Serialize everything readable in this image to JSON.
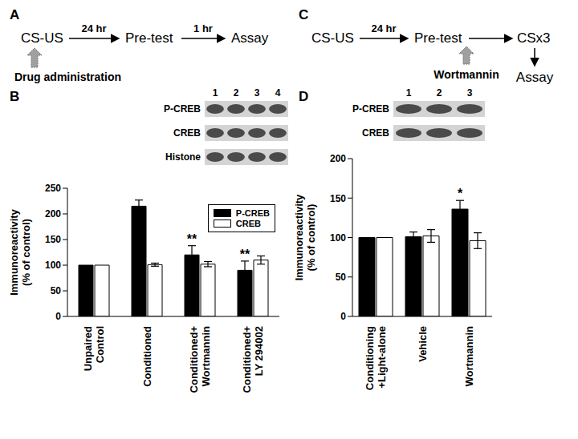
{
  "panel_labels": [
    "A",
    "B",
    "C",
    "D"
  ],
  "diagrams": [
    {
      "steps": [
        "CS-US",
        "Pre-test",
        "Assay"
      ],
      "intervals": [
        "24 hr",
        "1 hr"
      ],
      "intervention": "Drug administration"
    },
    {
      "steps": [
        "CS-US",
        "Pre-test",
        "CSx3",
        "Assay"
      ],
      "intervals": [
        "24 hr"
      ],
      "intervention": "Wortmannin"
    }
  ],
  "blots": [
    {
      "lanes": [
        "1",
        "2",
        "3",
        "4"
      ],
      "rows": [
        "P-CREB",
        "CREB",
        "Histone"
      ]
    },
    {
      "lanes": [
        "1",
        "2",
        "3"
      ],
      "rows": [
        "P-CREB",
        "CREB"
      ]
    }
  ],
  "chart_data": [
    {
      "type": "bar",
      "y_label": "Immunoreactivity\n(% of control)",
      "categories": [
        "Unpaired\nControl",
        "Conditioned",
        "Conditioned+\nWortmannin",
        "Conditioned+\nLY 294002"
      ],
      "series": [
        {
          "name": "P-CREB",
          "color": "#000000",
          "values": [
            100,
            215,
            120,
            90
          ],
          "errors": [
            0,
            12,
            18,
            18
          ]
        },
        {
          "name": "CREB",
          "color": "#ffffff",
          "values": [
            100,
            101,
            102,
            110
          ],
          "errors": [
            0,
            3,
            5,
            8
          ]
        }
      ],
      "annotations": [
        {
          "category": "Conditioned+\nWortmannin",
          "series": "P-CREB",
          "text": "**"
        },
        {
          "category": "Conditioned+\nLY 294002",
          "series": "P-CREB",
          "text": "**"
        }
      ],
      "ylim": [
        0,
        250
      ],
      "yticks": [
        0,
        50,
        100,
        150,
        200,
        250
      ],
      "grid": false,
      "legend": "top right"
    },
    {
      "type": "bar",
      "y_label": "Immunoreactivity\n(% of control)",
      "categories": [
        "Conditioning\n+Light-alone",
        "Vehicle",
        "Wortmannin"
      ],
      "series": [
        {
          "name": "P-CREB",
          "color": "#000000",
          "values": [
            100,
            101,
            136
          ],
          "errors": [
            0,
            6,
            11
          ]
        },
        {
          "name": "CREB",
          "color": "#ffffff",
          "values": [
            100,
            102,
            96
          ],
          "errors": [
            0,
            8,
            10
          ]
        }
      ],
      "annotations": [
        {
          "category": "Wortmannin",
          "series": "P-CREB",
          "text": "*"
        }
      ],
      "ylim": [
        0,
        200
      ],
      "yticks": [
        0,
        50,
        100,
        150,
        200
      ],
      "grid": false
    }
  ]
}
